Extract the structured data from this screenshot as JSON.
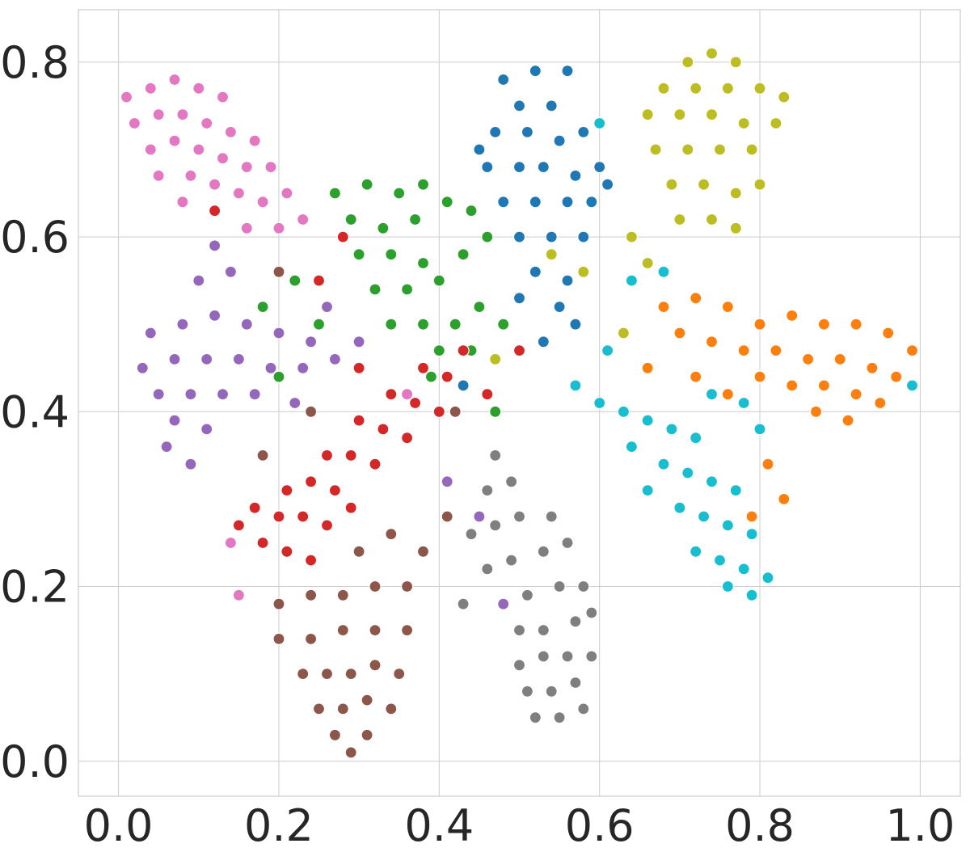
{
  "chart_data": {
    "type": "scatter",
    "title": "",
    "xlabel": "",
    "ylabel": "",
    "xlim": [
      -0.05,
      1.05
    ],
    "ylim": [
      -0.04,
      0.86
    ],
    "grid": true,
    "legend": "none",
    "x_ticks": [
      {
        "value": 0.0,
        "label": "0.0"
      },
      {
        "value": 0.2,
        "label": "0.2"
      },
      {
        "value": 0.4,
        "label": "0.4"
      },
      {
        "value": 0.6,
        "label": "0.6"
      },
      {
        "value": 0.8,
        "label": "0.8"
      },
      {
        "value": 1.0,
        "label": "1.0"
      }
    ],
    "y_ticks": [
      {
        "value": 0.0,
        "label": "0.0"
      },
      {
        "value": 0.2,
        "label": "0.2"
      },
      {
        "value": 0.4,
        "label": "0.4"
      },
      {
        "value": 0.6,
        "label": "0.6"
      },
      {
        "value": 0.8,
        "label": "0.8"
      }
    ],
    "series": [
      {
        "color": "#1f77b4",
        "points": [
          [
            0.48,
            0.78
          ],
          [
            0.52,
            0.79
          ],
          [
            0.56,
            0.79
          ],
          [
            0.5,
            0.75
          ],
          [
            0.54,
            0.75
          ],
          [
            0.47,
            0.72
          ],
          [
            0.51,
            0.72
          ],
          [
            0.55,
            0.71
          ],
          [
            0.58,
            0.72
          ],
          [
            0.46,
            0.68
          ],
          [
            0.5,
            0.68
          ],
          [
            0.53,
            0.68
          ],
          [
            0.57,
            0.67
          ],
          [
            0.6,
            0.68
          ],
          [
            0.48,
            0.64
          ],
          [
            0.52,
            0.64
          ],
          [
            0.56,
            0.64
          ],
          [
            0.59,
            0.64
          ],
          [
            0.5,
            0.6
          ],
          [
            0.54,
            0.6
          ],
          [
            0.58,
            0.6
          ],
          [
            0.52,
            0.56
          ],
          [
            0.56,
            0.55
          ],
          [
            0.55,
            0.52
          ],
          [
            0.5,
            0.53
          ],
          [
            0.57,
            0.5
          ],
          [
            0.53,
            0.48
          ],
          [
            0.43,
            0.43
          ],
          [
            0.61,
            0.66
          ],
          [
            0.45,
            0.7
          ]
        ]
      },
      {
        "color": "#ff7f0e",
        "points": [
          [
            0.68,
            0.52
          ],
          [
            0.72,
            0.53
          ],
          [
            0.76,
            0.52
          ],
          [
            0.8,
            0.5
          ],
          [
            0.84,
            0.51
          ],
          [
            0.88,
            0.5
          ],
          [
            0.92,
            0.5
          ],
          [
            0.96,
            0.49
          ],
          [
            0.99,
            0.47
          ],
          [
            0.7,
            0.49
          ],
          [
            0.74,
            0.48
          ],
          [
            0.78,
            0.47
          ],
          [
            0.82,
            0.47
          ],
          [
            0.86,
            0.46
          ],
          [
            0.9,
            0.46
          ],
          [
            0.94,
            0.45
          ],
          [
            0.97,
            0.44
          ],
          [
            0.8,
            0.44
          ],
          [
            0.84,
            0.43
          ],
          [
            0.88,
            0.43
          ],
          [
            0.92,
            0.42
          ],
          [
            0.95,
            0.41
          ],
          [
            0.87,
            0.4
          ],
          [
            0.91,
            0.39
          ],
          [
            0.66,
            0.45
          ],
          [
            0.72,
            0.44
          ],
          [
            0.76,
            0.42
          ],
          [
            0.81,
            0.34
          ],
          [
            0.79,
            0.28
          ],
          [
            0.83,
            0.3
          ]
        ]
      },
      {
        "color": "#2ca02c",
        "points": [
          [
            0.27,
            0.65
          ],
          [
            0.31,
            0.66
          ],
          [
            0.35,
            0.65
          ],
          [
            0.38,
            0.66
          ],
          [
            0.41,
            0.64
          ],
          [
            0.29,
            0.62
          ],
          [
            0.33,
            0.61
          ],
          [
            0.37,
            0.62
          ],
          [
            0.3,
            0.58
          ],
          [
            0.34,
            0.58
          ],
          [
            0.38,
            0.57
          ],
          [
            0.32,
            0.54
          ],
          [
            0.36,
            0.54
          ],
          [
            0.4,
            0.55
          ],
          [
            0.43,
            0.58
          ],
          [
            0.46,
            0.6
          ],
          [
            0.34,
            0.5
          ],
          [
            0.38,
            0.5
          ],
          [
            0.42,
            0.5
          ],
          [
            0.45,
            0.52
          ],
          [
            0.4,
            0.47
          ],
          [
            0.44,
            0.47
          ],
          [
            0.22,
            0.55
          ],
          [
            0.18,
            0.52
          ],
          [
            0.25,
            0.5
          ],
          [
            0.2,
            0.44
          ],
          [
            0.47,
            0.4
          ],
          [
            0.39,
            0.44
          ],
          [
            0.44,
            0.63
          ],
          [
            0.48,
            0.5
          ]
        ]
      },
      {
        "color": "#d62728",
        "points": [
          [
            0.15,
            0.27
          ],
          [
            0.18,
            0.25
          ],
          [
            0.21,
            0.24
          ],
          [
            0.24,
            0.23
          ],
          [
            0.17,
            0.29
          ],
          [
            0.2,
            0.28
          ],
          [
            0.23,
            0.28
          ],
          [
            0.26,
            0.27
          ],
          [
            0.21,
            0.31
          ],
          [
            0.24,
            0.32
          ],
          [
            0.27,
            0.31
          ],
          [
            0.29,
            0.29
          ],
          [
            0.26,
            0.35
          ],
          [
            0.29,
            0.35
          ],
          [
            0.32,
            0.34
          ],
          [
            0.3,
            0.39
          ],
          [
            0.33,
            0.38
          ],
          [
            0.36,
            0.37
          ],
          [
            0.34,
            0.42
          ],
          [
            0.37,
            0.41
          ],
          [
            0.4,
            0.4
          ],
          [
            0.38,
            0.45
          ],
          [
            0.41,
            0.44
          ],
          [
            0.43,
            0.47
          ],
          [
            0.3,
            0.45
          ],
          [
            0.25,
            0.55
          ],
          [
            0.28,
            0.6
          ],
          [
            0.46,
            0.42
          ],
          [
            0.5,
            0.47
          ],
          [
            0.12,
            0.63
          ]
        ]
      },
      {
        "color": "#9467bd",
        "points": [
          [
            0.04,
            0.49
          ],
          [
            0.08,
            0.5
          ],
          [
            0.12,
            0.51
          ],
          [
            0.16,
            0.5
          ],
          [
            0.2,
            0.49
          ],
          [
            0.24,
            0.48
          ],
          [
            0.03,
            0.45
          ],
          [
            0.07,
            0.46
          ],
          [
            0.11,
            0.46
          ],
          [
            0.15,
            0.46
          ],
          [
            0.19,
            0.45
          ],
          [
            0.23,
            0.45
          ],
          [
            0.05,
            0.42
          ],
          [
            0.09,
            0.42
          ],
          [
            0.13,
            0.42
          ],
          [
            0.17,
            0.42
          ],
          [
            0.07,
            0.39
          ],
          [
            0.11,
            0.38
          ],
          [
            0.06,
            0.36
          ],
          [
            0.1,
            0.55
          ],
          [
            0.14,
            0.56
          ],
          [
            0.12,
            0.59
          ],
          [
            0.27,
            0.46
          ],
          [
            0.22,
            0.41
          ],
          [
            0.3,
            0.48
          ],
          [
            0.09,
            0.34
          ],
          [
            0.41,
            0.32
          ],
          [
            0.48,
            0.18
          ],
          [
            0.45,
            0.28
          ],
          [
            0.26,
            0.52
          ]
        ]
      },
      {
        "color": "#8c564b",
        "points": [
          [
            0.27,
            0.03
          ],
          [
            0.29,
            0.01
          ],
          [
            0.31,
            0.03
          ],
          [
            0.25,
            0.06
          ],
          [
            0.28,
            0.06
          ],
          [
            0.31,
            0.07
          ],
          [
            0.34,
            0.06
          ],
          [
            0.23,
            0.1
          ],
          [
            0.26,
            0.1
          ],
          [
            0.29,
            0.1
          ],
          [
            0.32,
            0.11
          ],
          [
            0.35,
            0.1
          ],
          [
            0.2,
            0.14
          ],
          [
            0.24,
            0.14
          ],
          [
            0.28,
            0.15
          ],
          [
            0.32,
            0.15
          ],
          [
            0.36,
            0.15
          ],
          [
            0.2,
            0.18
          ],
          [
            0.24,
            0.19
          ],
          [
            0.28,
            0.19
          ],
          [
            0.32,
            0.2
          ],
          [
            0.36,
            0.2
          ],
          [
            0.38,
            0.24
          ],
          [
            0.34,
            0.26
          ],
          [
            0.3,
            0.24
          ],
          [
            0.41,
            0.28
          ],
          [
            0.18,
            0.35
          ],
          [
            0.24,
            0.4
          ],
          [
            0.2,
            0.56
          ],
          [
            0.42,
            0.4
          ]
        ]
      },
      {
        "color": "#e377c2",
        "points": [
          [
            0.01,
            0.76
          ],
          [
            0.04,
            0.77
          ],
          [
            0.07,
            0.78
          ],
          [
            0.1,
            0.77
          ],
          [
            0.13,
            0.76
          ],
          [
            0.02,
            0.73
          ],
          [
            0.05,
            0.74
          ],
          [
            0.08,
            0.74
          ],
          [
            0.11,
            0.73
          ],
          [
            0.14,
            0.72
          ],
          [
            0.17,
            0.71
          ],
          [
            0.04,
            0.7
          ],
          [
            0.07,
            0.71
          ],
          [
            0.1,
            0.7
          ],
          [
            0.13,
            0.69
          ],
          [
            0.16,
            0.68
          ],
          [
            0.19,
            0.68
          ],
          [
            0.05,
            0.67
          ],
          [
            0.09,
            0.67
          ],
          [
            0.12,
            0.66
          ],
          [
            0.15,
            0.65
          ],
          [
            0.18,
            0.64
          ],
          [
            0.21,
            0.65
          ],
          [
            0.23,
            0.62
          ],
          [
            0.2,
            0.61
          ],
          [
            0.16,
            0.61
          ],
          [
            0.08,
            0.64
          ],
          [
            0.15,
            0.19
          ],
          [
            0.14,
            0.25
          ],
          [
            0.36,
            0.42
          ]
        ]
      },
      {
        "color": "#7f7f7f",
        "points": [
          [
            0.52,
            0.05
          ],
          [
            0.55,
            0.05
          ],
          [
            0.58,
            0.06
          ],
          [
            0.51,
            0.08
          ],
          [
            0.54,
            0.08
          ],
          [
            0.57,
            0.09
          ],
          [
            0.5,
            0.11
          ],
          [
            0.53,
            0.12
          ],
          [
            0.56,
            0.12
          ],
          [
            0.59,
            0.12
          ],
          [
            0.5,
            0.15
          ],
          [
            0.53,
            0.15
          ],
          [
            0.57,
            0.16
          ],
          [
            0.59,
            0.17
          ],
          [
            0.48,
            0.18
          ],
          [
            0.51,
            0.19
          ],
          [
            0.55,
            0.2
          ],
          [
            0.58,
            0.2
          ],
          [
            0.46,
            0.22
          ],
          [
            0.49,
            0.23
          ],
          [
            0.53,
            0.24
          ],
          [
            0.56,
            0.25
          ],
          [
            0.44,
            0.26
          ],
          [
            0.47,
            0.27
          ],
          [
            0.5,
            0.28
          ],
          [
            0.54,
            0.28
          ],
          [
            0.46,
            0.31
          ],
          [
            0.49,
            0.32
          ],
          [
            0.47,
            0.35
          ],
          [
            0.43,
            0.18
          ]
        ]
      },
      {
        "color": "#bcbd22",
        "points": [
          [
            0.71,
            0.8
          ],
          [
            0.74,
            0.81
          ],
          [
            0.77,
            0.8
          ],
          [
            0.68,
            0.77
          ],
          [
            0.72,
            0.77
          ],
          [
            0.76,
            0.77
          ],
          [
            0.8,
            0.77
          ],
          [
            0.83,
            0.76
          ],
          [
            0.66,
            0.74
          ],
          [
            0.7,
            0.74
          ],
          [
            0.74,
            0.74
          ],
          [
            0.78,
            0.73
          ],
          [
            0.82,
            0.73
          ],
          [
            0.67,
            0.7
          ],
          [
            0.71,
            0.7
          ],
          [
            0.75,
            0.7
          ],
          [
            0.79,
            0.7
          ],
          [
            0.69,
            0.66
          ],
          [
            0.73,
            0.66
          ],
          [
            0.77,
            0.65
          ],
          [
            0.8,
            0.66
          ],
          [
            0.7,
            0.62
          ],
          [
            0.74,
            0.62
          ],
          [
            0.77,
            0.61
          ],
          [
            0.64,
            0.6
          ],
          [
            0.66,
            0.57
          ],
          [
            0.58,
            0.56
          ],
          [
            0.54,
            0.58
          ],
          [
            0.47,
            0.46
          ],
          [
            0.63,
            0.49
          ]
        ]
      },
      {
        "color": "#17becf",
        "points": [
          [
            0.57,
            0.43
          ],
          [
            0.6,
            0.41
          ],
          [
            0.63,
            0.4
          ],
          [
            0.66,
            0.39
          ],
          [
            0.69,
            0.38
          ],
          [
            0.72,
            0.37
          ],
          [
            0.64,
            0.36
          ],
          [
            0.68,
            0.34
          ],
          [
            0.71,
            0.33
          ],
          [
            0.74,
            0.32
          ],
          [
            0.77,
            0.31
          ],
          [
            0.66,
            0.31
          ],
          [
            0.7,
            0.29
          ],
          [
            0.73,
            0.28
          ],
          [
            0.76,
            0.27
          ],
          [
            0.79,
            0.26
          ],
          [
            0.72,
            0.24
          ],
          [
            0.75,
            0.23
          ],
          [
            0.78,
            0.22
          ],
          [
            0.81,
            0.21
          ],
          [
            0.76,
            0.2
          ],
          [
            0.79,
            0.19
          ],
          [
            0.74,
            0.42
          ],
          [
            0.78,
            0.41
          ],
          [
            0.8,
            0.38
          ],
          [
            0.64,
            0.55
          ],
          [
            0.68,
            0.56
          ],
          [
            0.61,
            0.47
          ],
          [
            0.6,
            0.73
          ],
          [
            0.99,
            0.43
          ]
        ]
      }
    ]
  }
}
